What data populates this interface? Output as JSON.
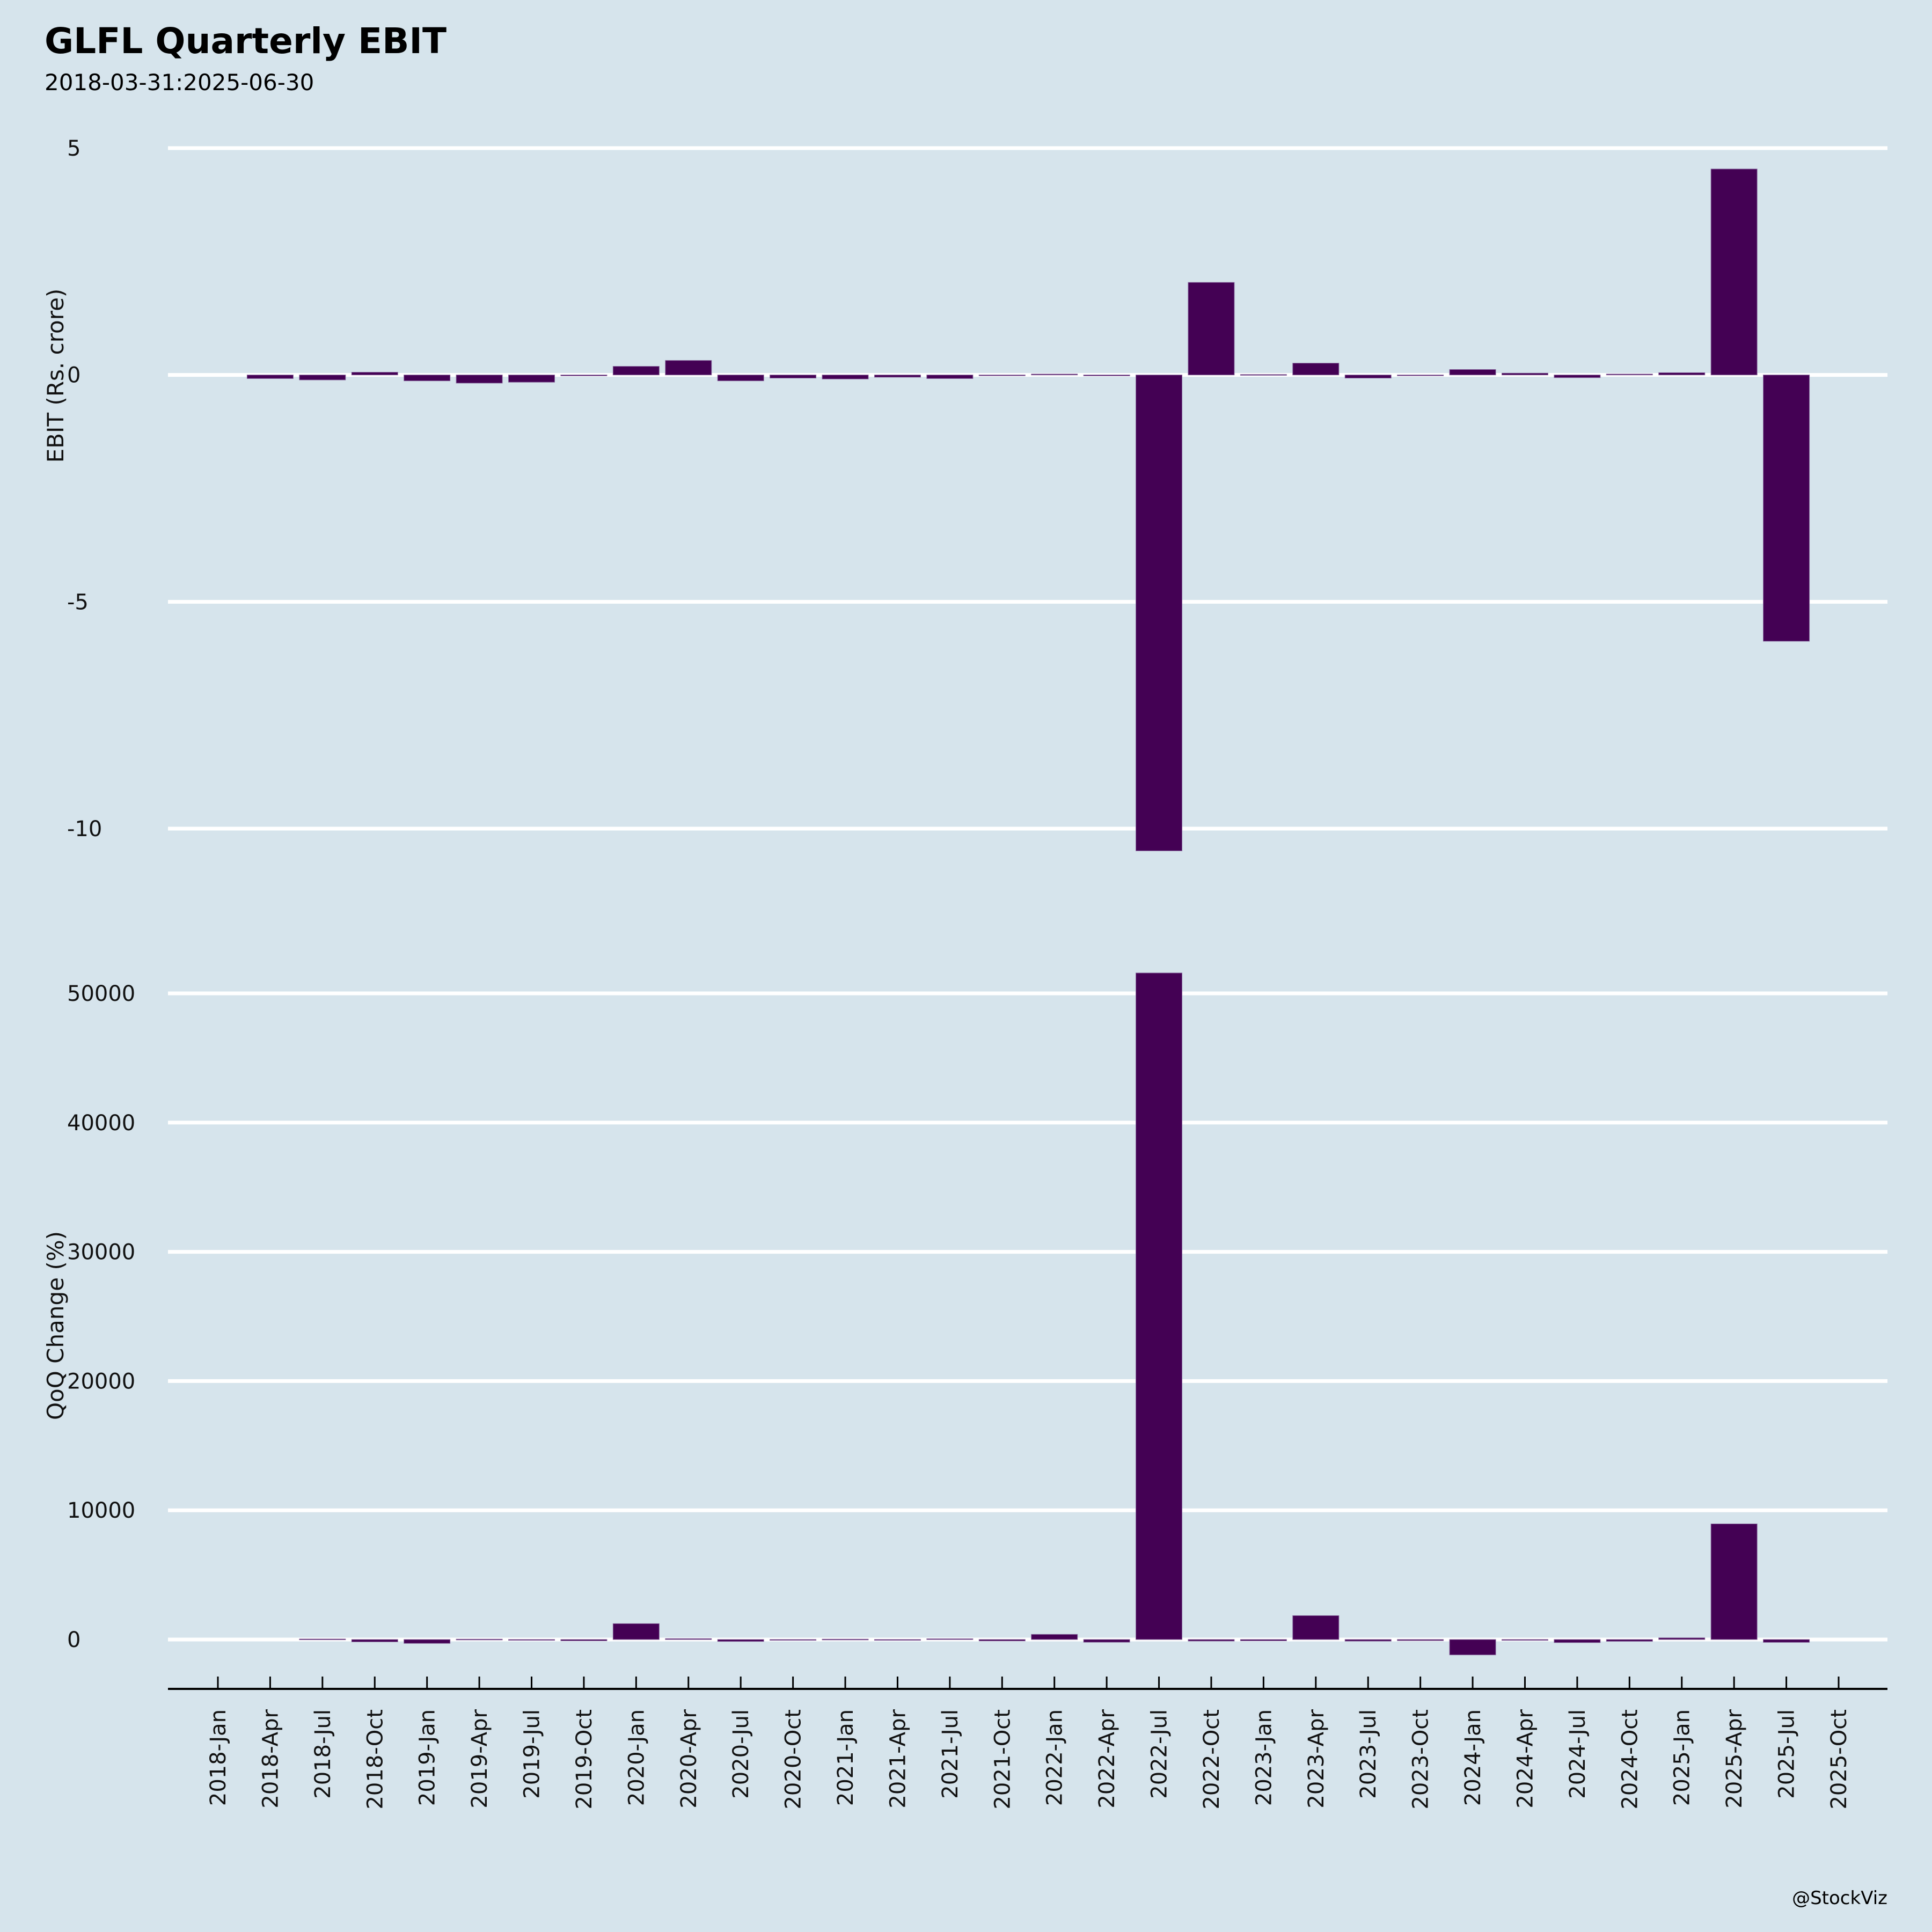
{
  "header": {
    "title": "GLFL Quarterly EBIT",
    "subtitle": "2018-03-31:2025-06-30"
  },
  "footer": {
    "credit": "@StockViz"
  },
  "colors": {
    "background": "#d6e4ec",
    "bar": "#440154",
    "grid": "#ffffff"
  },
  "chart_data": [
    {
      "type": "bar",
      "title": "GLFL Quarterly EBIT",
      "subtitle": "2018-03-31:2025-06-30",
      "xlabel": "",
      "ylabel": "EBIT (Rs. crore)",
      "ylim": [
        -11,
        5.1
      ],
      "yticks": [
        5,
        0,
        -5,
        -10
      ],
      "ytick_labels": [
        "5",
        "0",
        "-5",
        "-10"
      ],
      "grid": true,
      "categories": [
        "2018-Jan",
        "2018-Apr",
        "2018-Jul",
        "2018-Oct",
        "2019-Jan",
        "2019-Apr",
        "2019-Jul",
        "2019-Oct",
        "2020-Jan",
        "2020-Apr",
        "2020-Jul",
        "2020-Oct",
        "2021-Jan",
        "2021-Apr",
        "2021-Jul",
        "2021-Oct",
        "2022-Jan",
        "2022-Apr",
        "2022-Jul",
        "2022-Oct",
        "2023-Jan",
        "2023-Apr",
        "2023-Jul",
        "2023-Oct",
        "2024-Jan",
        "2024-Apr",
        "2024-Jul",
        "2024-Oct",
        "2025-Jan",
        "2025-Apr",
        "2025-Jul",
        "2025-Oct"
      ],
      "values": [
        null,
        -0.08,
        -0.11,
        0.06,
        -0.13,
        -0.18,
        -0.16,
        -0.02,
        0.19,
        0.32,
        -0.13,
        -0.07,
        -0.09,
        -0.05,
        -0.08,
        -0.01,
        0.02,
        -0.02,
        -10.49,
        2.04,
        0.01,
        0.26,
        -0.07,
        -0.01,
        0.12,
        0.04,
        -0.06,
        0.02,
        0.05,
        4.54,
        -5.87,
        null
      ]
    },
    {
      "type": "bar",
      "xlabel": "",
      "ylabel": "QoQ Change (%)",
      "ylim": [
        -1500,
        52000
      ],
      "yticks": [
        50000,
        40000,
        30000,
        20000,
        10000,
        0
      ],
      "ytick_labels": [
        "50000",
        "40000",
        "30000",
        "20000",
        "10000",
        "0"
      ],
      "grid": true,
      "categories": [
        "2018-Jan",
        "2018-Apr",
        "2018-Jul",
        "2018-Oct",
        "2019-Jan",
        "2019-Apr",
        "2019-Jul",
        "2019-Oct",
        "2020-Jan",
        "2020-Apr",
        "2020-Jul",
        "2020-Oct",
        "2021-Jan",
        "2021-Apr",
        "2021-Jul",
        "2021-Oct",
        "2022-Jan",
        "2022-Apr",
        "2022-Jul",
        "2022-Oct",
        "2023-Jan",
        "2023-Apr",
        "2023-Jul",
        "2023-Oct",
        "2024-Jan",
        "2024-Apr",
        "2024-Jul",
        "2024-Oct",
        "2025-Jan",
        "2025-Apr",
        "2025-Jul",
        "2025-Oct"
      ],
      "values": [
        null,
        null,
        40,
        -180,
        -300,
        30,
        -20,
        -100,
        1230,
        70,
        -150,
        -50,
        30,
        -45,
        60,
        -110,
        400,
        -210,
        51580,
        -120,
        -100,
        1850,
        -125,
        -85,
        -1190,
        -65,
        -240,
        -140,
        130,
        8950,
        -220,
        null
      ]
    }
  ]
}
